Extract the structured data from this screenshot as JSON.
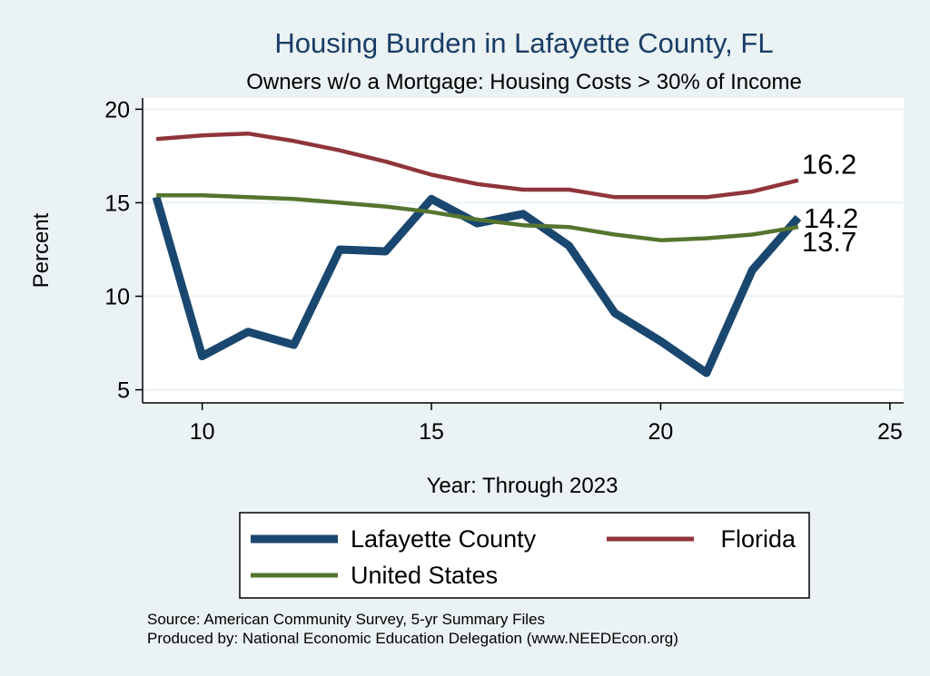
{
  "chart_data": {
    "type": "line",
    "title": "Housing Burden in Lafayette County, FL",
    "subtitle": "Owners w/o a Mortgage: Housing Costs > 30% of Income",
    "xlabel": "Year: Through 2023",
    "ylabel": "Percent",
    "xlim": [
      8.7,
      25.3
    ],
    "ylim": [
      4.3,
      20.6
    ],
    "xticks": [
      10,
      15,
      20,
      25
    ],
    "yticks": [
      5,
      10,
      15,
      20
    ],
    "grid": true,
    "legend_position": "bottom",
    "series": [
      {
        "name": "Lafayette County",
        "color": "#1a476f",
        "x": [
          9,
          10,
          11,
          12,
          13,
          14,
          15,
          16,
          17,
          18,
          19,
          20,
          21,
          22,
          23
        ],
        "values": [
          15.3,
          6.8,
          8.1,
          7.4,
          12.5,
          12.4,
          15.2,
          13.9,
          14.4,
          12.7,
          9.1,
          7.6,
          5.9,
          11.4,
          14.2
        ],
        "end_label": "14.2"
      },
      {
        "name": "Florida",
        "color": "#90353b",
        "x": [
          9,
          10,
          11,
          12,
          13,
          14,
          15,
          16,
          17,
          18,
          19,
          20,
          21,
          22,
          23
        ],
        "values": [
          18.4,
          18.6,
          18.7,
          18.3,
          17.8,
          17.2,
          16.5,
          16.0,
          15.7,
          15.7,
          15.3,
          15.3,
          15.3,
          15.6,
          16.2
        ],
        "end_label": "16.2"
      },
      {
        "name": "United States",
        "color": "#55752f",
        "x": [
          9,
          10,
          11,
          12,
          13,
          14,
          15,
          16,
          17,
          18,
          19,
          20,
          21,
          22,
          23
        ],
        "values": [
          15.4,
          15.4,
          15.3,
          15.2,
          15.0,
          14.8,
          14.5,
          14.1,
          13.8,
          13.7,
          13.3,
          13.0,
          13.1,
          13.3,
          13.7
        ],
        "end_label": "13.7"
      }
    ],
    "source_lines": [
      "Source: American Community Survey, 5-yr Summary Files",
      "Produced by: National Economic Education Delegation (www.NEEDEcon.org)"
    ]
  }
}
